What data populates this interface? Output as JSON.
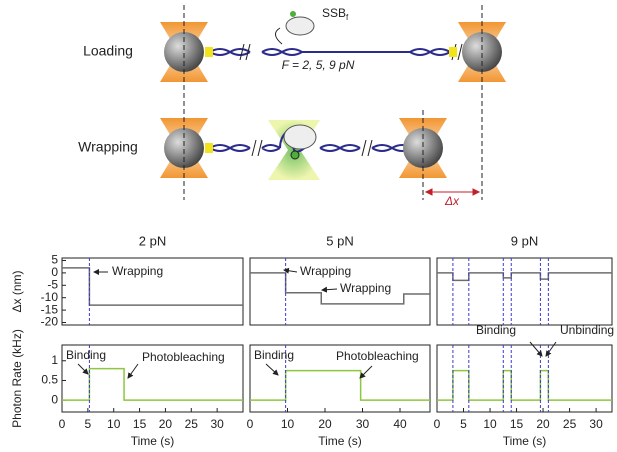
{
  "diagram": {
    "rows": [
      "Loading",
      "Wrapping"
    ],
    "protein": {
      "label": "SSB",
      "subscript": "f"
    },
    "force": "F = 2, 5, 9 pN",
    "delta": "Δx"
  },
  "chart_data": [
    {
      "type": "line",
      "title": "2 pN",
      "ylabel": "Δx (nm)",
      "xlim": [
        0,
        35
      ],
      "ylim": [
        -21,
        6
      ],
      "yticks": [
        5,
        0,
        -5,
        -10,
        -15,
        -20
      ],
      "markers": [
        5.3
      ],
      "annotations": [
        "Wrapping"
      ],
      "series": [
        {
          "color": "#6d6d6d",
          "x": [
            0,
            5.3,
            5.3,
            35
          ],
          "values": [
            2,
            2,
            -13,
            -13
          ]
        }
      ]
    },
    {
      "type": "line",
      "title": "5 pN",
      "xlim": [
        0,
        48
      ],
      "ylim": [
        -21,
        6
      ],
      "markers": [
        9.5
      ],
      "annotations": [
        "Wrapping",
        "Wrapping"
      ],
      "series": [
        {
          "color": "#6d6d6d",
          "x": [
            0,
            9.5,
            9.5,
            19,
            19,
            41,
            41,
            48
          ],
          "values": [
            0,
            0,
            -8,
            -8,
            -12.5,
            -12.5,
            -8.5,
            -8.5
          ]
        }
      ]
    },
    {
      "type": "line",
      "title": "9 pN",
      "xlim": [
        0,
        33
      ],
      "ylim": [
        -21,
        6
      ],
      "markers": [
        3,
        6,
        12.5,
        14,
        19.5,
        21
      ],
      "series": [
        {
          "color": "#6d6d6d",
          "x": [
            0,
            3,
            3,
            6,
            6,
            12.5,
            12.5,
            14,
            14,
            19.5,
            19.5,
            21,
            21,
            33
          ],
          "values": [
            0,
            0,
            -3,
            -3,
            0,
            0,
            -2,
            -2,
            0,
            0,
            -2.5,
            -2.5,
            0,
            0
          ]
        }
      ]
    },
    {
      "type": "line",
      "ylabel": "Photon Rate (kHz)",
      "xlabel": "Time (s)",
      "xlim": [
        0,
        35
      ],
      "ylim": [
        -0.3,
        1.4
      ],
      "xticks": [
        0,
        5,
        10,
        15,
        20,
        25,
        30
      ],
      "yticks": [
        0,
        0.5,
        1
      ],
      "markers": [
        5.3
      ],
      "annotations": [
        "Binding",
        "Photobleaching"
      ],
      "series": [
        {
          "color": "#8dc63f",
          "x": [
            0,
            5.3,
            5.3,
            12,
            12,
            35
          ],
          "values": [
            0,
            0,
            0.8,
            0.8,
            0,
            0
          ]
        }
      ]
    },
    {
      "type": "line",
      "xlabel": "Time (s)",
      "xlim": [
        0,
        48
      ],
      "ylim": [
        -0.3,
        1.4
      ],
      "xticks": [
        0,
        10,
        20,
        30,
        40
      ],
      "markers": [
        9.5
      ],
      "annotations": [
        "Binding",
        "Photobleaching"
      ],
      "series": [
        {
          "color": "#8dc63f",
          "x": [
            0,
            9.5,
            9.5,
            29.5,
            29.5,
            48
          ],
          "values": [
            0,
            0,
            0.75,
            0.75,
            0,
            0
          ]
        }
      ]
    },
    {
      "type": "line",
      "xlabel": "Time (s)",
      "xlim": [
        0,
        33
      ],
      "ylim": [
        -0.3,
        1.4
      ],
      "xticks": [
        0,
        5,
        10,
        15,
        20,
        25,
        30
      ],
      "markers": [
        3,
        6,
        12.5,
        14,
        19.5,
        21
      ],
      "annotations": [
        "Binding",
        "Unbinding"
      ],
      "series": [
        {
          "color": "#8dc63f",
          "x": [
            0,
            3,
            3,
            6,
            6,
            12.5,
            12.5,
            14,
            14,
            19.5,
            19.5,
            21,
            21,
            33
          ],
          "values": [
            0,
            0,
            0.75,
            0.75,
            0,
            0,
            0.75,
            0.75,
            0,
            0,
            0.75,
            0.75,
            0,
            0
          ]
        }
      ]
    }
  ]
}
